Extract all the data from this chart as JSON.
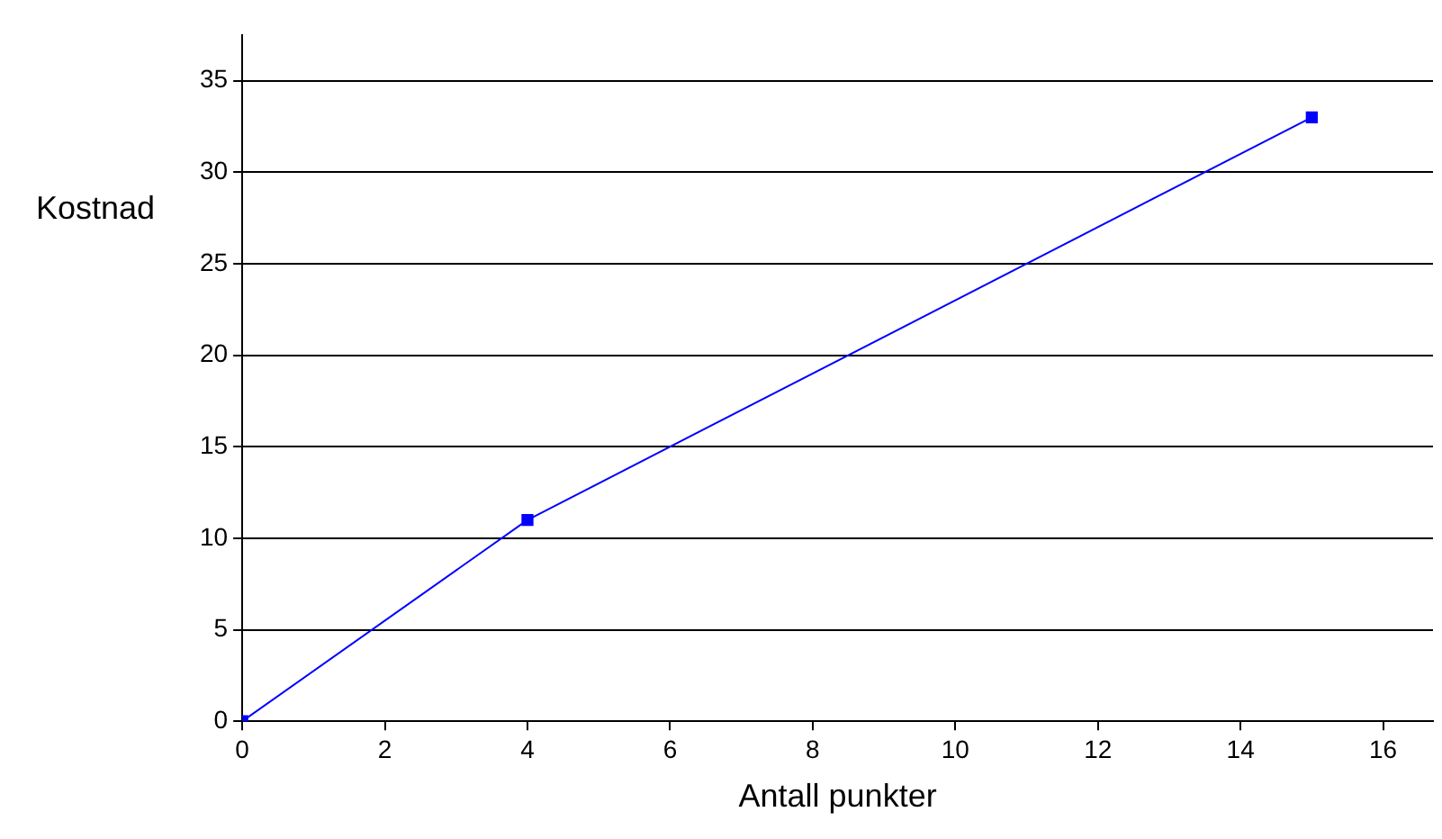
{
  "chart_data": {
    "type": "line",
    "xlabel": "Antall punkter",
    "ylabel": "Kostnad",
    "x": [
      0,
      4,
      15
    ],
    "series": [
      {
        "color": "#0000ff",
        "values": [
          0,
          11,
          33
        ]
      }
    ],
    "xlim": [
      0,
      16.7
    ],
    "xticks": [
      0,
      2,
      4,
      6,
      8,
      10,
      12,
      14,
      16
    ],
    "ylim": [
      0,
      37.5
    ],
    "yticks": [
      0,
      5,
      10,
      15,
      20,
      25,
      30,
      35
    ],
    "grid": "y",
    "legend": false,
    "marker": "square",
    "line_style": "solid"
  }
}
